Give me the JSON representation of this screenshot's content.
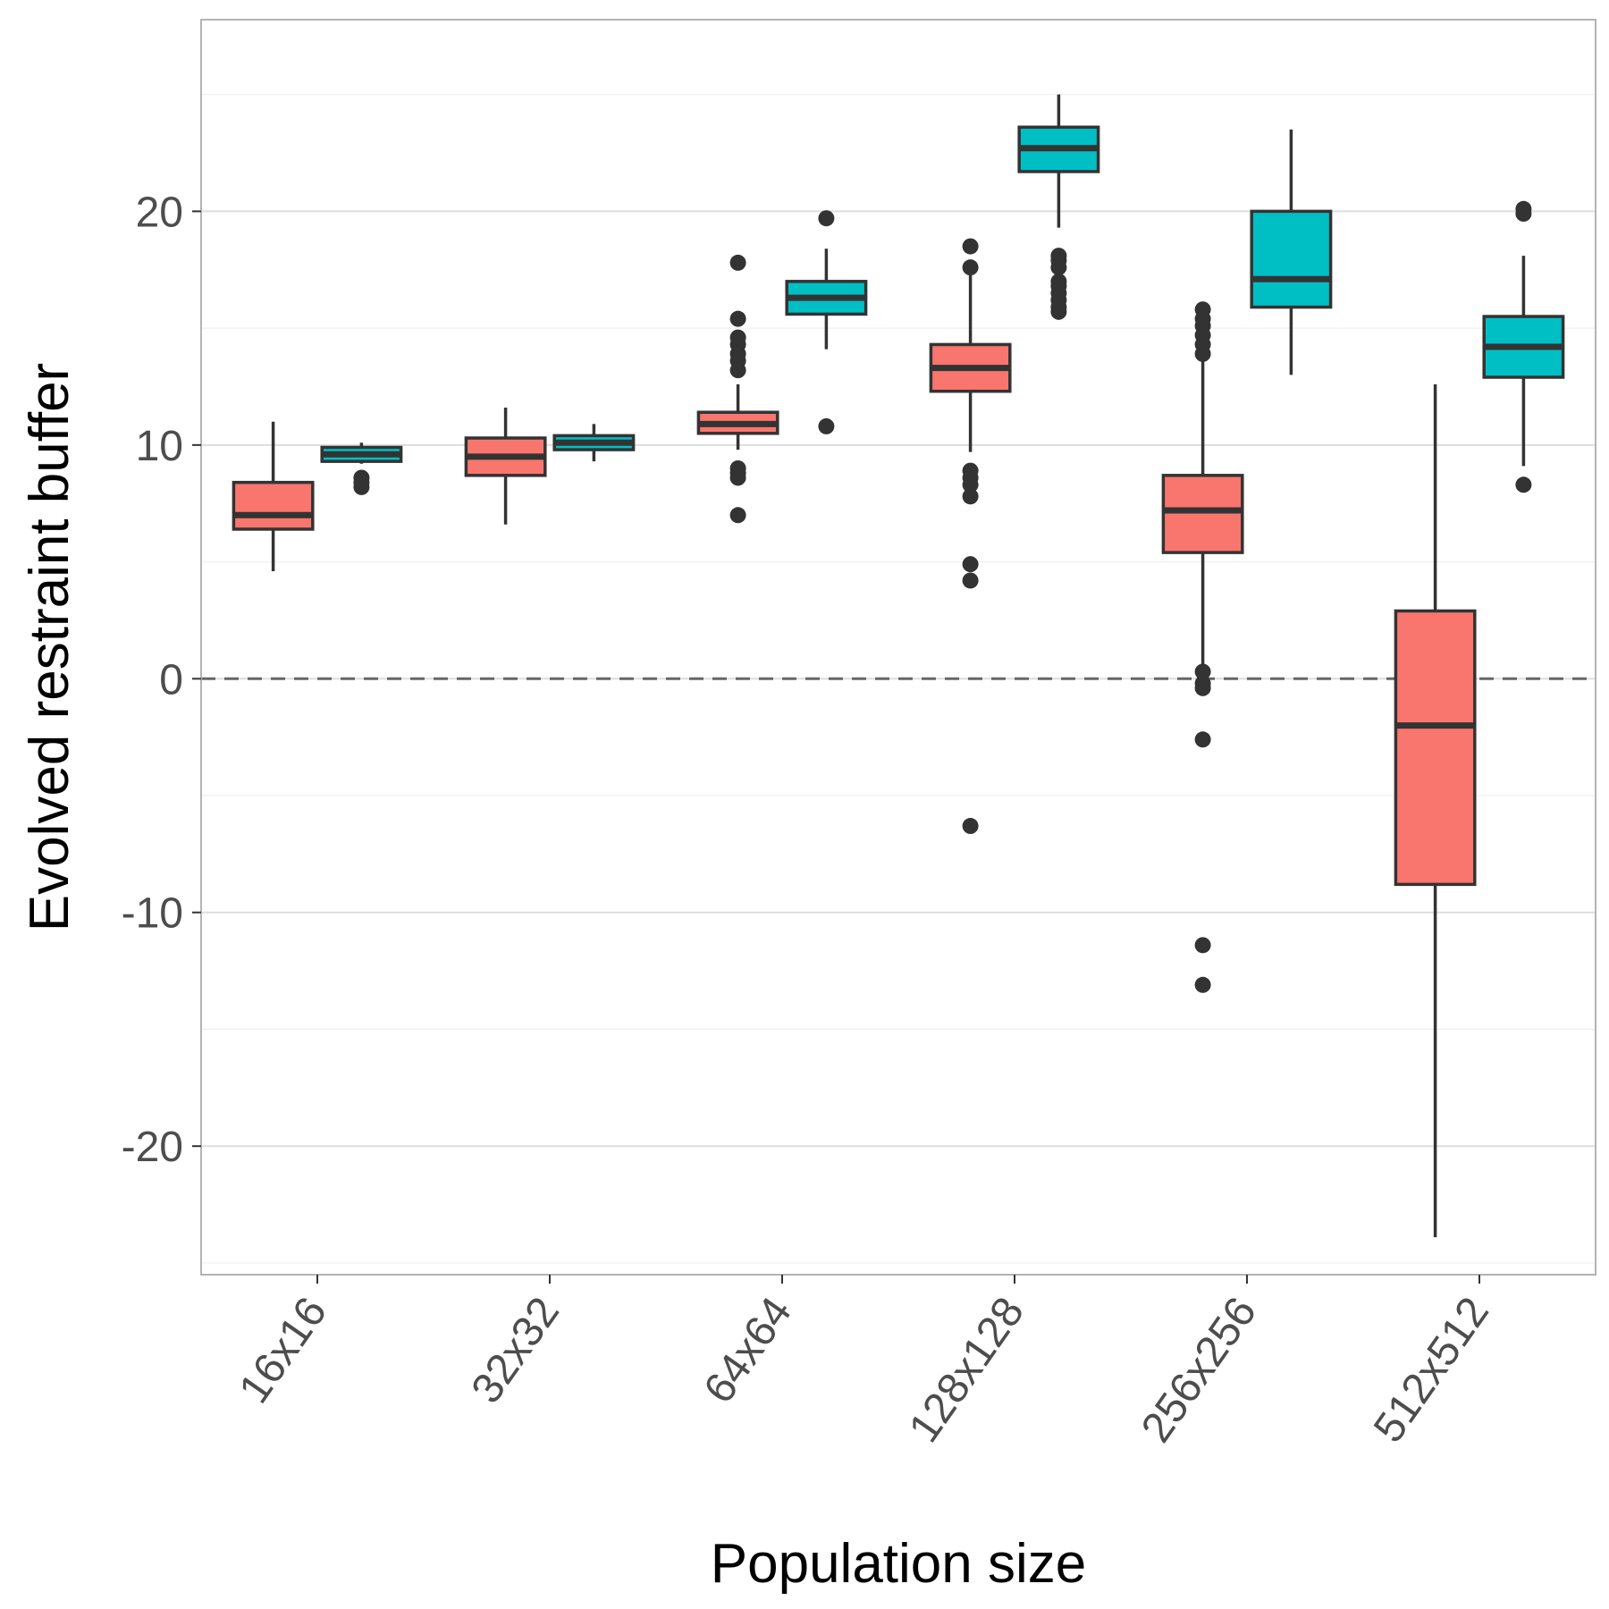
{
  "chart_data": {
    "type": "boxplot",
    "title": "",
    "xlabel": "Population size",
    "ylabel": "Evolved restraint buffer",
    "categories": [
      "16x16",
      "32x32",
      "64x64",
      "128x128",
      "256x256",
      "512x512"
    ],
    "ylim": [
      -25.5,
      28.2
    ],
    "yticks": [
      -20,
      -10,
      0,
      10,
      20
    ],
    "yticklabels": [
      "-20",
      "-10",
      "0",
      "10",
      "20"
    ],
    "reference_line": 0,
    "grid": true,
    "legend": "none",
    "series": [
      {
        "color": "#F8766D",
        "boxes": [
          {
            "lower_whisker": 4.6,
            "q1": 6.4,
            "median": 7.0,
            "q3": 8.4,
            "upper_whisker": 11.0,
            "outliers": []
          },
          {
            "lower_whisker": 6.6,
            "q1": 8.7,
            "median": 9.5,
            "q3": 10.3,
            "upper_whisker": 11.6,
            "outliers": []
          },
          {
            "lower_whisker": 9.8,
            "q1": 10.5,
            "median": 10.9,
            "q3": 11.4,
            "upper_whisker": 12.6,
            "outliers": [
              17.8,
              15.4,
              14.6,
              14.3,
              13.9,
              13.6,
              13.2,
              9.0,
              8.8,
              8.6,
              7.0
            ]
          },
          {
            "lower_whisker": 9.7,
            "q1": 12.3,
            "median": 13.3,
            "q3": 14.3,
            "upper_whisker": 17.4,
            "outliers": [
              18.5,
              17.6,
              8.9,
              8.6,
              8.3,
              7.8,
              4.9,
              4.2,
              -6.3
            ]
          },
          {
            "lower_whisker": 0.6,
            "q1": 5.4,
            "median": 7.2,
            "q3": 8.7,
            "upper_whisker": 13.6,
            "outliers": [
              15.8,
              15.4,
              15.1,
              14.7,
              14.3,
              13.9,
              0.3,
              -0.2,
              -0.4,
              -2.6,
              -11.4,
              -13.1
            ]
          },
          {
            "lower_whisker": -23.9,
            "q1": -8.8,
            "median": -2.0,
            "q3": 2.9,
            "upper_whisker": 12.6,
            "outliers": []
          }
        ]
      },
      {
        "color": "#00BFC4",
        "boxes": [
          {
            "lower_whisker": 9.2,
            "q1": 9.3,
            "median": 9.6,
            "q3": 9.9,
            "upper_whisker": 10.1,
            "outliers": [
              8.6,
              8.4,
              8.2
            ]
          },
          {
            "lower_whisker": 9.3,
            "q1": 9.8,
            "median": 10.1,
            "q3": 10.4,
            "upper_whisker": 10.9,
            "outliers": []
          },
          {
            "lower_whisker": 14.1,
            "q1": 15.6,
            "median": 16.3,
            "q3": 17.0,
            "upper_whisker": 18.4,
            "outliers": [
              19.7,
              10.8
            ]
          },
          {
            "lower_whisker": 19.3,
            "q1": 21.7,
            "median": 22.7,
            "q3": 23.6,
            "upper_whisker": 25.0,
            "outliers": [
              18.1,
              17.9,
              17.6,
              17.0,
              16.8,
              16.5,
              16.2,
              15.9,
              15.7
            ]
          },
          {
            "lower_whisker": 13.0,
            "q1": 15.9,
            "median": 17.1,
            "q3": 20.0,
            "upper_whisker": 23.5,
            "outliers": []
          },
          {
            "lower_whisker": 9.1,
            "q1": 12.9,
            "median": 14.2,
            "q3": 15.5,
            "upper_whisker": 18.1,
            "outliers": [
              20.1,
              19.9,
              8.3
            ]
          }
        ]
      }
    ]
  }
}
